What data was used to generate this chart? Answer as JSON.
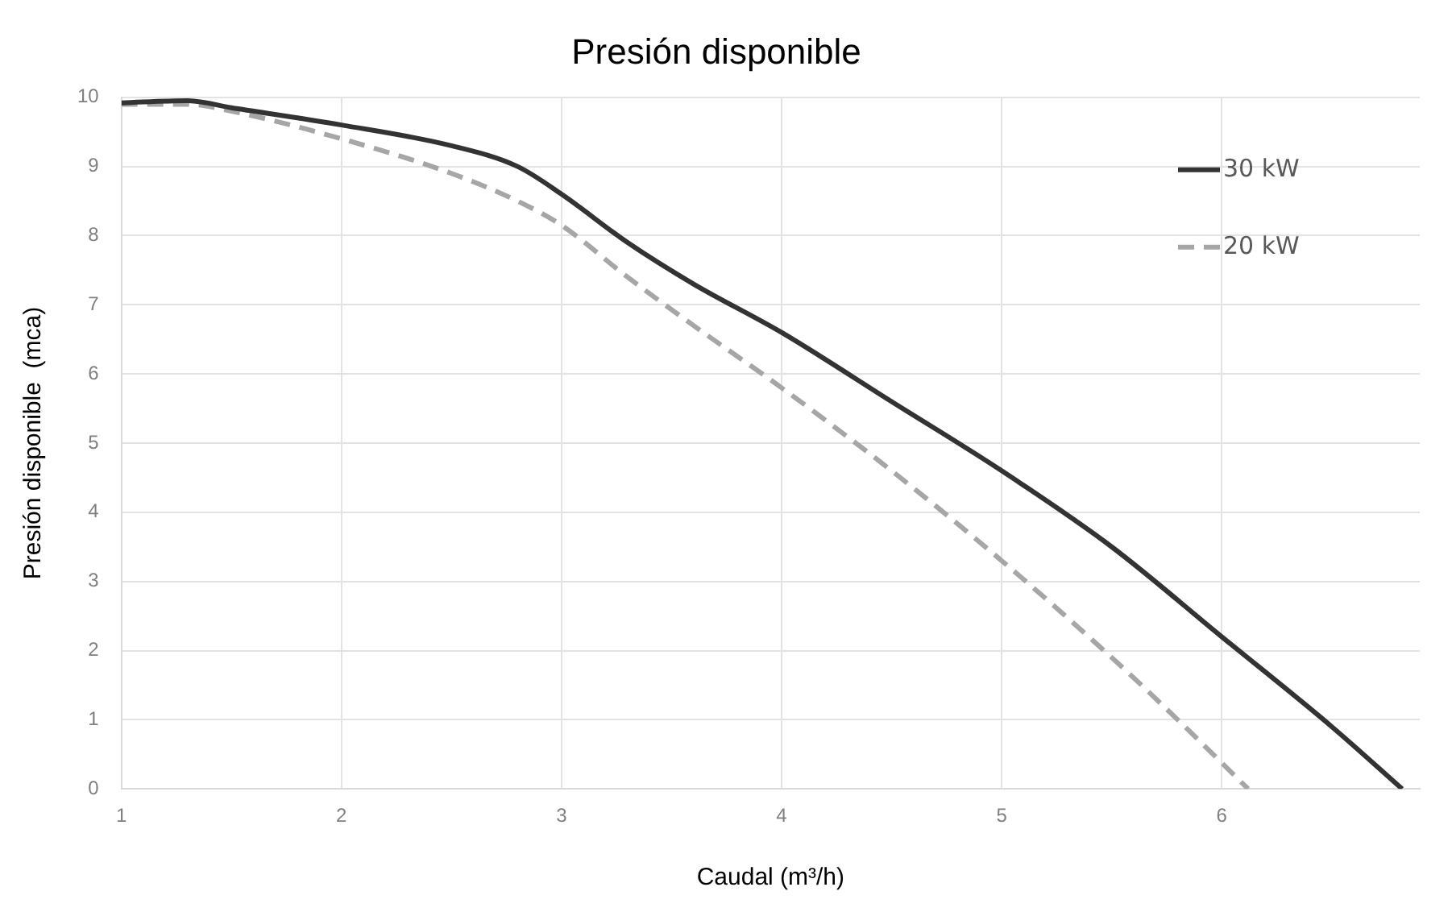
{
  "chart_data": {
    "type": "line",
    "title": "Presión disponible",
    "xlabel": "Caudal (m³/h)",
    "ylabel": "Presión disponible  (mca)",
    "series": [
      {
        "name": "30 kW",
        "color": "#333333",
        "line_style": "solid",
        "x": [
          1,
          1.3,
          1.5,
          2,
          2.5,
          2.8,
          3,
          3.3,
          3.6,
          4,
          4.5,
          5,
          5.5,
          6,
          6.5,
          6.82
        ],
        "values": [
          9.92,
          9.95,
          9.85,
          9.6,
          9.3,
          9.0,
          8.6,
          7.9,
          7.3,
          6.6,
          5.6,
          4.6,
          3.5,
          2.2,
          0.9,
          0
        ]
      },
      {
        "name": "20 kW",
        "color": "#a6a6a6",
        "line_style": "dashed",
        "x": [
          1,
          1.3,
          1.5,
          2,
          2.5,
          2.8,
          3,
          3.3,
          3.6,
          4,
          4.5,
          5,
          5.5,
          5.8,
          6.12
        ],
        "values": [
          9.9,
          9.9,
          9.8,
          9.4,
          8.9,
          8.5,
          8.15,
          7.4,
          6.7,
          5.8,
          4.6,
          3.3,
          1.9,
          1.0,
          0
        ]
      }
    ],
    "xlim": [
      1,
      6.9
    ],
    "xticks": [
      1,
      2,
      3,
      4,
      5,
      6
    ],
    "ylim": [
      0,
      10
    ],
    "yticks": [
      0,
      1,
      2,
      3,
      4,
      5,
      6,
      7,
      8,
      9,
      10
    ],
    "grid": true,
    "legend": "top right",
    "marker": "none"
  }
}
